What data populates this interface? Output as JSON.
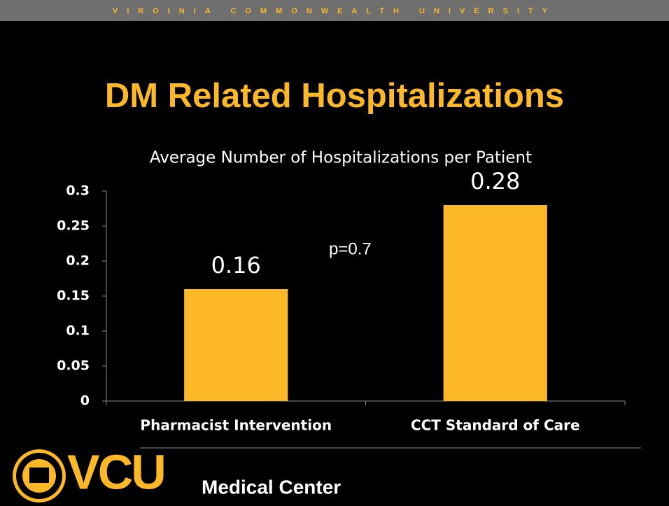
{
  "header": {
    "university": "VIRGINIA COMMONWEALTH UNIVERSITY",
    "title": "DM Related Hospitalizations"
  },
  "chart_data": {
    "type": "bar",
    "title": "Average Number of Hospitalizations per Patient",
    "categories": [
      "Pharmacist Intervention",
      "CCT Standard of Care"
    ],
    "values": [
      0.16,
      0.28
    ],
    "color": "#fdb827",
    "ylim": [
      0,
      0.3
    ],
    "yticks": [
      0,
      0.05,
      0.1,
      0.15,
      0.2,
      0.25,
      0.3
    ],
    "annotation": "p=0.7"
  },
  "footer": {
    "logo": "VCU",
    "subtitle": "Medical Center"
  }
}
